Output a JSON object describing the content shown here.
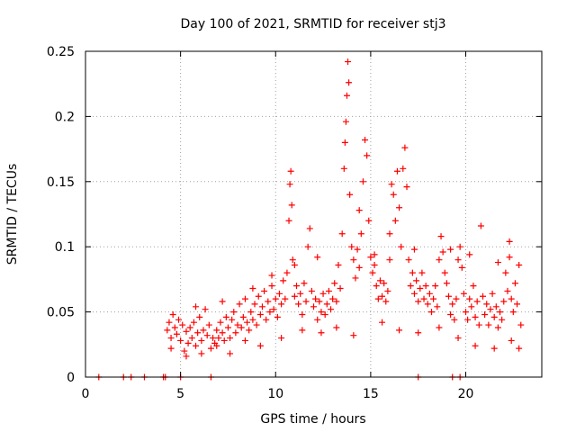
{
  "chart_data": {
    "type": "scatter",
    "title": "Day 100 of 2021, SRMTID for receiver stj3",
    "xlabel": "GPS time / hours",
    "ylabel": "SRMTID / TECUs",
    "xlim": [
      0,
      24
    ],
    "ylim": [
      0,
      0.25
    ],
    "grid": true,
    "marker": "+",
    "series_color": "#ff0000",
    "xticks": [
      {
        "value": 0,
        "label": "0"
      },
      {
        "value": 5,
        "label": "5"
      },
      {
        "value": 10,
        "label": "10"
      },
      {
        "value": 15,
        "label": "15"
      },
      {
        "value": 20,
        "label": "20"
      }
    ],
    "yticks": [
      {
        "value": 0,
        "label": "0"
      },
      {
        "value": 0.05,
        "label": "0.05"
      },
      {
        "value": 0.1,
        "label": "0.1"
      },
      {
        "value": 0.15,
        "label": "0.15"
      },
      {
        "value": 0.2,
        "label": "0.2"
      },
      {
        "value": 0.25,
        "label": "0.25"
      }
    ],
    "series": [
      {
        "name": "SRMTID",
        "points": [
          [
            0.7,
            0
          ],
          [
            2.0,
            0
          ],
          [
            2.4,
            0
          ],
          [
            3.1,
            0
          ],
          [
            4.1,
            0
          ],
          [
            4.2,
            0
          ],
          [
            5.0,
            0
          ],
          [
            6.6,
            0
          ],
          [
            17.5,
            0
          ],
          [
            19.3,
            0
          ],
          [
            19.7,
            0
          ],
          [
            4.3,
            0.036
          ],
          [
            4.4,
            0.042
          ],
          [
            4.5,
            0.03
          ],
          [
            4.6,
            0.048
          ],
          [
            4.7,
            0.038
          ],
          [
            4.8,
            0.033
          ],
          [
            4.9,
            0.044
          ],
          [
            5.0,
            0.028
          ],
          [
            5.1,
            0.04
          ],
          [
            5.2,
            0.02
          ],
          [
            5.3,
            0.035
          ],
          [
            5.4,
            0.026
          ],
          [
            5.5,
            0.038
          ],
          [
            5.6,
            0.03
          ],
          [
            5.7,
            0.042
          ],
          [
            5.8,
            0.024
          ],
          [
            5.9,
            0.034
          ],
          [
            6.0,
            0.046
          ],
          [
            6.1,
            0.028
          ],
          [
            6.2,
            0.036
          ],
          [
            6.3,
            0.052
          ],
          [
            6.4,
            0.032
          ],
          [
            6.5,
            0.04
          ],
          [
            6.6,
            0.022
          ],
          [
            6.7,
            0.03
          ],
          [
            6.8,
            0.026
          ],
          [
            6.9,
            0.036
          ],
          [
            7.0,
            0.03
          ],
          [
            7.1,
            0.042
          ],
          [
            7.2,
            0.034
          ],
          [
            7.3,
            0.028
          ],
          [
            7.4,
            0.046
          ],
          [
            7.5,
            0.038
          ],
          [
            7.6,
            0.03
          ],
          [
            7.7,
            0.044
          ],
          [
            7.8,
            0.05
          ],
          [
            7.9,
            0.034
          ],
          [
            8.0,
            0.04
          ],
          [
            8.1,
            0.056
          ],
          [
            8.2,
            0.038
          ],
          [
            8.3,
            0.046
          ],
          [
            8.4,
            0.06
          ],
          [
            8.5,
            0.042
          ],
          [
            8.6,
            0.036
          ],
          [
            8.7,
            0.05
          ],
          [
            8.8,
            0.044
          ],
          [
            8.9,
            0.056
          ],
          [
            9.0,
            0.04
          ],
          [
            9.1,
            0.062
          ],
          [
            9.2,
            0.048
          ],
          [
            9.3,
            0.054
          ],
          [
            9.4,
            0.066
          ],
          [
            9.5,
            0.044
          ],
          [
            9.6,
            0.058
          ],
          [
            9.7,
            0.05
          ],
          [
            9.8,
            0.07
          ],
          [
            9.9,
            0.052
          ],
          [
            10.0,
            0.06
          ],
          [
            10.1,
            0.046
          ],
          [
            10.2,
            0.064
          ],
          [
            10.3,
            0.056
          ],
          [
            10.4,
            0.074
          ],
          [
            10.5,
            0.06
          ],
          [
            10.6,
            0.08
          ],
          [
            10.7,
            0.12
          ],
          [
            10.75,
            0.148
          ],
          [
            10.8,
            0.158
          ],
          [
            10.85,
            0.132
          ],
          [
            10.9,
            0.09
          ],
          [
            11.0,
            0.062
          ],
          [
            11.1,
            0.07
          ],
          [
            11.2,
            0.056
          ],
          [
            11.3,
            0.064
          ],
          [
            11.4,
            0.048
          ],
          [
            11.5,
            0.072
          ],
          [
            11.6,
            0.058
          ],
          [
            11.7,
            0.1
          ],
          [
            11.8,
            0.114
          ],
          [
            11.9,
            0.066
          ],
          [
            12.0,
            0.054
          ],
          [
            12.1,
            0.06
          ],
          [
            12.2,
            0.044
          ],
          [
            12.3,
            0.058
          ],
          [
            12.4,
            0.05
          ],
          [
            12.5,
            0.064
          ],
          [
            12.6,
            0.048
          ],
          [
            12.7,
            0.056
          ],
          [
            12.8,
            0.066
          ],
          [
            12.9,
            0.052
          ],
          [
            13.0,
            0.06
          ],
          [
            13.1,
            0.072
          ],
          [
            13.2,
            0.058
          ],
          [
            13.3,
            0.086
          ],
          [
            13.4,
            0.068
          ],
          [
            13.5,
            0.11
          ],
          [
            13.6,
            0.16
          ],
          [
            13.65,
            0.18
          ],
          [
            13.7,
            0.196
          ],
          [
            13.75,
            0.216
          ],
          [
            13.8,
            0.242
          ],
          [
            13.85,
            0.226
          ],
          [
            13.9,
            0.14
          ],
          [
            14.0,
            0.1
          ],
          [
            14.1,
            0.09
          ],
          [
            14.2,
            0.076
          ],
          [
            14.3,
            0.098
          ],
          [
            14.4,
            0.084
          ],
          [
            14.5,
            0.11
          ],
          [
            14.6,
            0.15
          ],
          [
            14.7,
            0.182
          ],
          [
            14.8,
            0.17
          ],
          [
            14.9,
            0.12
          ],
          [
            15.0,
            0.092
          ],
          [
            15.1,
            0.08
          ],
          [
            15.2,
            0.086
          ],
          [
            15.3,
            0.07
          ],
          [
            15.4,
            0.06
          ],
          [
            15.5,
            0.074
          ],
          [
            15.6,
            0.062
          ],
          [
            15.7,
            0.072
          ],
          [
            15.8,
            0.058
          ],
          [
            15.9,
            0.066
          ],
          [
            16.0,
            0.11
          ],
          [
            16.1,
            0.148
          ],
          [
            16.2,
            0.14
          ],
          [
            16.3,
            0.12
          ],
          [
            16.4,
            0.158
          ],
          [
            16.5,
            0.13
          ],
          [
            16.6,
            0.1
          ],
          [
            16.7,
            0.16
          ],
          [
            16.8,
            0.176
          ],
          [
            16.9,
            0.146
          ],
          [
            17.0,
            0.09
          ],
          [
            17.1,
            0.07
          ],
          [
            17.2,
            0.08
          ],
          [
            17.3,
            0.064
          ],
          [
            17.4,
            0.074
          ],
          [
            17.5,
            0.058
          ],
          [
            17.6,
            0.068
          ],
          [
            17.7,
            0.08
          ],
          [
            17.8,
            0.06
          ],
          [
            17.9,
            0.07
          ],
          [
            18.0,
            0.056
          ],
          [
            18.1,
            0.064
          ],
          [
            18.2,
            0.05
          ],
          [
            18.3,
            0.06
          ],
          [
            18.4,
            0.07
          ],
          [
            18.5,
            0.054
          ],
          [
            18.6,
            0.09
          ],
          [
            18.7,
            0.108
          ],
          [
            18.8,
            0.096
          ],
          [
            18.9,
            0.08
          ],
          [
            19.0,
            0.072
          ],
          [
            19.1,
            0.062
          ],
          [
            19.2,
            0.048
          ],
          [
            19.3,
            0.056
          ],
          [
            19.4,
            0.044
          ],
          [
            19.5,
            0.06
          ],
          [
            19.6,
            0.09
          ],
          [
            19.7,
            0.1
          ],
          [
            19.8,
            0.084
          ],
          [
            19.9,
            0.064
          ],
          [
            20.0,
            0.05
          ],
          [
            20.1,
            0.044
          ],
          [
            20.2,
            0.06
          ],
          [
            20.3,
            0.054
          ],
          [
            20.4,
            0.07
          ],
          [
            20.5,
            0.046
          ],
          [
            20.6,
            0.058
          ],
          [
            20.7,
            0.04
          ],
          [
            20.8,
            0.116
          ],
          [
            20.9,
            0.062
          ],
          [
            21.0,
            0.048
          ],
          [
            21.1,
            0.056
          ],
          [
            21.2,
            0.04
          ],
          [
            21.3,
            0.052
          ],
          [
            21.4,
            0.064
          ],
          [
            21.5,
            0.046
          ],
          [
            21.6,
            0.054
          ],
          [
            21.7,
            0.038
          ],
          [
            21.8,
            0.05
          ],
          [
            21.9,
            0.044
          ],
          [
            22.0,
            0.058
          ],
          [
            22.1,
            0.08
          ],
          [
            22.2,
            0.066
          ],
          [
            22.3,
            0.092
          ],
          [
            22.4,
            0.06
          ],
          [
            22.5,
            0.05
          ],
          [
            22.6,
            0.072
          ],
          [
            22.7,
            0.056
          ],
          [
            22.8,
            0.086
          ],
          [
            22.9,
            0.04
          ],
          [
            4.5,
            0.022
          ],
          [
            5.3,
            0.016
          ],
          [
            6.1,
            0.018
          ],
          [
            6.9,
            0.024
          ],
          [
            7.6,
            0.018
          ],
          [
            8.4,
            0.028
          ],
          [
            9.2,
            0.024
          ],
          [
            10.3,
            0.03
          ],
          [
            11.4,
            0.036
          ],
          [
            12.4,
            0.034
          ],
          [
            13.2,
            0.038
          ],
          [
            14.1,
            0.032
          ],
          [
            15.6,
            0.042
          ],
          [
            16.5,
            0.036
          ],
          [
            17.5,
            0.034
          ],
          [
            18.6,
            0.038
          ],
          [
            19.6,
            0.03
          ],
          [
            20.5,
            0.024
          ],
          [
            21.5,
            0.022
          ],
          [
            22.4,
            0.028
          ],
          [
            22.8,
            0.022
          ],
          [
            5.8,
            0.054
          ],
          [
            7.2,
            0.058
          ],
          [
            8.8,
            0.068
          ],
          [
            9.8,
            0.078
          ],
          [
            11.0,
            0.086
          ],
          [
            12.2,
            0.092
          ],
          [
            14.4,
            0.128
          ],
          [
            15.2,
            0.094
          ],
          [
            16.0,
            0.09
          ],
          [
            17.3,
            0.098
          ],
          [
            19.2,
            0.098
          ],
          [
            20.2,
            0.094
          ],
          [
            21.7,
            0.088
          ],
          [
            22.3,
            0.104
          ]
        ]
      }
    ]
  }
}
